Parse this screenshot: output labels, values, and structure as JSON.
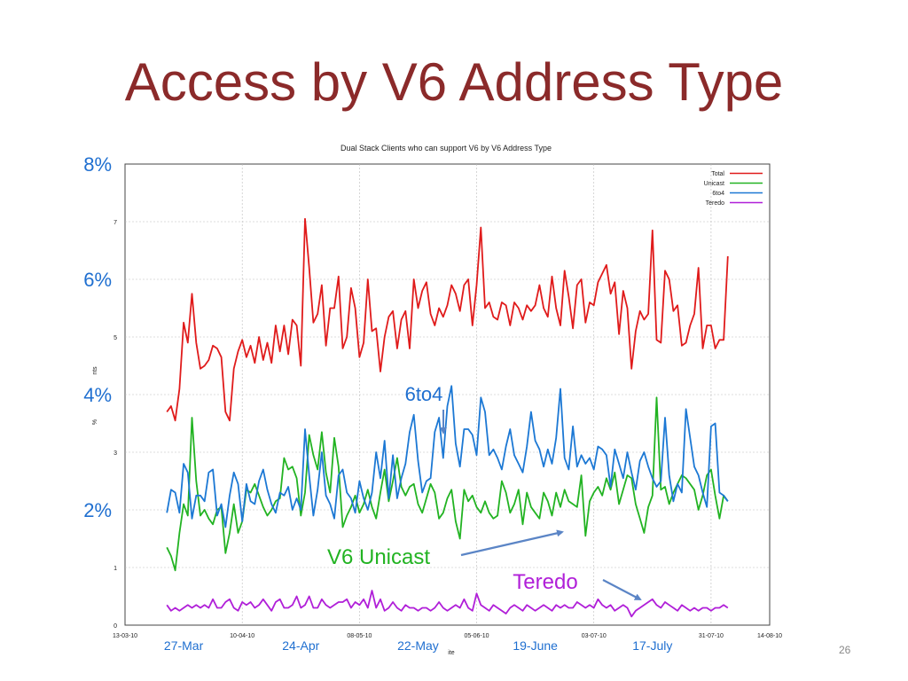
{
  "slide": {
    "title": "Access by V6 Address Type",
    "slide_number": "26"
  },
  "colors": {
    "title": "#8b2a2a",
    "annotation_blue": "#1f6fd0",
    "total": "#e01b1b",
    "unicast": "#22b322",
    "sixto4": "#1c78d4",
    "teredo": "#b01fd8",
    "arrow": "#5b85c6"
  },
  "chart_data": {
    "type": "line",
    "title": "Dual Stack Clients who can support V6 by V6 Address Type",
    "ylabel_fragments": [
      "%",
      "nts"
    ],
    "xlabel_fragment": "ite",
    "ylim": [
      0,
      8
    ],
    "yticks": [
      "0",
      "1",
      "2",
      "3",
      "4",
      "5",
      "6",
      "7",
      "8"
    ],
    "xticks": [
      "13-03-10",
      "10-04-10",
      "08-05-10",
      "05-06-10",
      "03-07-10",
      "31-07-10",
      "14-08-10"
    ],
    "x_start": "2010-03-13",
    "x_end": "2010-08-14",
    "grid": true,
    "legend_position": "top-right",
    "series": [
      {
        "name": "Total",
        "color_key": "total",
        "x": [
          "2010-03-23",
          "2010-03-24",
          "2010-03-25",
          "2010-03-26",
          "2010-03-27",
          "2010-03-28",
          "2010-03-29",
          "2010-03-30",
          "2010-03-31",
          "2010-04-01",
          "2010-04-02",
          "2010-04-03",
          "2010-04-04",
          "2010-04-05",
          "2010-04-06",
          "2010-04-07",
          "2010-04-08",
          "2010-04-09",
          "2010-04-10",
          "2010-04-11",
          "2010-04-12",
          "2010-04-13",
          "2010-04-14",
          "2010-04-15",
          "2010-04-16",
          "2010-04-17",
          "2010-04-18",
          "2010-04-19",
          "2010-04-20",
          "2010-04-21",
          "2010-04-22",
          "2010-04-23",
          "2010-04-24",
          "2010-04-25",
          "2010-04-26",
          "2010-04-27",
          "2010-04-28",
          "2010-04-29",
          "2010-04-30",
          "2010-05-01",
          "2010-05-02",
          "2010-05-03",
          "2010-05-04",
          "2010-05-05",
          "2010-05-06",
          "2010-05-07",
          "2010-05-08",
          "2010-05-09",
          "2010-05-10",
          "2010-05-11",
          "2010-05-12",
          "2010-05-13",
          "2010-05-14",
          "2010-05-15",
          "2010-05-16",
          "2010-05-17",
          "2010-05-18",
          "2010-05-19",
          "2010-05-20",
          "2010-05-21",
          "2010-05-22",
          "2010-05-23",
          "2010-05-24",
          "2010-05-25",
          "2010-05-26",
          "2010-05-27",
          "2010-05-28",
          "2010-05-29",
          "2010-05-30",
          "2010-05-31",
          "2010-06-01",
          "2010-06-02",
          "2010-06-03",
          "2010-06-04",
          "2010-06-05",
          "2010-06-06",
          "2010-06-07",
          "2010-06-08",
          "2010-06-09",
          "2010-06-10",
          "2010-06-11",
          "2010-06-12",
          "2010-06-13",
          "2010-06-14",
          "2010-06-15",
          "2010-06-16",
          "2010-06-17",
          "2010-06-18",
          "2010-06-19",
          "2010-06-20",
          "2010-06-21",
          "2010-06-22",
          "2010-06-23",
          "2010-06-24",
          "2010-06-25",
          "2010-06-26",
          "2010-06-27",
          "2010-06-28",
          "2010-06-29",
          "2010-06-30",
          "2010-07-01",
          "2010-07-02",
          "2010-07-03",
          "2010-07-04",
          "2010-07-05",
          "2010-07-06",
          "2010-07-07",
          "2010-07-08",
          "2010-07-09",
          "2010-07-10",
          "2010-07-11",
          "2010-07-12",
          "2010-07-13",
          "2010-07-14",
          "2010-07-15",
          "2010-07-16",
          "2010-07-17",
          "2010-07-18",
          "2010-07-19",
          "2010-07-20",
          "2010-07-21",
          "2010-07-22",
          "2010-07-23",
          "2010-07-24",
          "2010-07-25",
          "2010-07-26",
          "2010-07-27",
          "2010-07-28",
          "2010-07-29",
          "2010-07-30",
          "2010-07-31",
          "2010-08-01",
          "2010-08-02",
          "2010-08-03",
          "2010-08-04"
        ],
        "values": [
          3.7,
          3.8,
          3.55,
          4.1,
          5.25,
          4.9,
          5.75,
          4.9,
          4.45,
          4.5,
          4.6,
          4.85,
          4.8,
          4.65,
          3.7,
          3.55,
          4.45,
          4.75,
          4.95,
          4.65,
          4.85,
          4.55,
          5.0,
          4.6,
          4.9,
          4.55,
          5.2,
          4.75,
          5.2,
          4.7,
          5.3,
          5.2,
          4.5,
          7.05,
          6.2,
          5.25,
          5.4,
          5.9,
          4.85,
          5.5,
          5.5,
          6.05,
          4.8,
          5.0,
          5.85,
          5.5,
          4.65,
          4.9,
          6.0,
          5.1,
          5.15,
          4.4,
          5.0,
          5.35,
          5.45,
          4.8,
          5.3,
          5.45,
          4.8,
          6.0,
          5.5,
          5.8,
          5.95,
          5.4,
          5.2,
          5.5,
          5.35,
          5.55,
          5.9,
          5.75,
          5.45,
          5.9,
          6.0,
          5.2,
          5.9,
          6.9,
          5.5,
          5.6,
          5.35,
          5.3,
          5.6,
          5.55,
          5.2,
          5.6,
          5.5,
          5.3,
          5.55,
          5.45,
          5.55,
          5.9,
          5.5,
          5.35,
          6.05,
          5.5,
          5.2,
          6.15,
          5.7,
          5.15,
          5.9,
          6.0,
          5.25,
          5.6,
          5.55,
          5.95,
          6.1,
          6.25,
          5.75,
          5.95,
          5.05,
          5.8,
          5.5,
          4.45,
          5.1,
          5.45,
          5.3,
          5.4,
          6.85,
          4.95,
          4.9,
          6.15,
          6.0,
          5.45,
          5.55,
          4.85,
          4.9,
          5.2,
          5.4,
          6.2,
          4.8,
          5.2,
          5.2,
          4.8,
          4.95,
          4.95,
          6.4
        ],
        "y_values_note": null
      },
      {
        "name": "Unicast",
        "color_key": "unicast",
        "values": [
          1.35,
          1.2,
          0.95,
          1.6,
          2.1,
          1.9,
          3.6,
          2.5,
          1.9,
          2.0,
          1.85,
          1.75,
          2.0,
          2.05,
          1.25,
          1.6,
          2.1,
          1.6,
          1.8,
          2.35,
          2.3,
          2.45,
          2.25,
          2.05,
          1.9,
          2.0,
          2.15,
          2.2,
          2.9,
          2.7,
          2.75,
          2.55,
          1.9,
          2.3,
          3.3,
          2.95,
          2.7,
          3.35,
          2.65,
          2.3,
          3.25,
          2.75,
          1.7,
          1.9,
          2.05,
          2.25,
          1.95,
          2.1,
          2.35,
          2.05,
          1.85,
          2.3,
          2.7,
          2.15,
          2.5,
          2.9,
          2.4,
          2.25,
          2.4,
          2.45,
          2.1,
          1.95,
          2.2,
          2.45,
          2.3,
          1.85,
          1.95,
          2.2,
          2.35,
          1.8,
          1.5,
          2.35,
          2.15,
          2.25,
          2.05,
          1.95,
          2.15,
          1.95,
          1.85,
          1.9,
          2.5,
          2.3,
          1.95,
          2.1,
          2.35,
          1.75,
          2.3,
          2.05,
          1.95,
          1.85,
          2.3,
          2.15,
          1.9,
          2.3,
          2.05,
          2.35,
          2.15,
          2.1,
          2.05,
          2.6,
          1.55,
          2.15,
          2.3,
          2.4,
          2.25,
          2.55,
          2.35,
          2.65,
          2.1,
          2.35,
          2.6,
          2.55,
          2.1,
          1.85,
          1.6,
          2.05,
          2.25,
          3.95,
          2.35,
          2.4,
          2.1,
          2.3,
          2.45,
          2.6,
          2.55,
          2.45,
          2.35,
          2.0,
          2.25,
          2.6,
          2.7,
          2.25,
          1.85,
          2.25,
          2.15
        ],
        "x_same_as": "Total"
      },
      {
        "name": "6to4",
        "color_key": "sixto4",
        "values": [
          1.95,
          2.35,
          2.3,
          1.95,
          2.8,
          2.65,
          1.85,
          2.25,
          2.25,
          2.15,
          2.65,
          2.7,
          1.9,
          2.1,
          1.7,
          2.25,
          2.65,
          2.45,
          1.8,
          2.45,
          2.15,
          2.1,
          2.5,
          2.7,
          2.35,
          2.1,
          1.95,
          2.3,
          2.25,
          2.4,
          2.0,
          2.2,
          2.0,
          3.4,
          2.6,
          1.9,
          2.35,
          3.0,
          2.25,
          2.1,
          1.85,
          2.6,
          2.7,
          2.3,
          2.2,
          1.95,
          2.5,
          2.2,
          2.0,
          2.3,
          3.0,
          2.55,
          3.2,
          2.2,
          2.95,
          2.2,
          2.55,
          2.8,
          3.35,
          3.65,
          2.85,
          2.3,
          2.5,
          2.55,
          3.35,
          3.6,
          2.9,
          3.8,
          4.15,
          3.15,
          2.75,
          3.4,
          3.4,
          3.3,
          2.95,
          3.95,
          3.7,
          2.95,
          3.05,
          2.9,
          2.7,
          3.1,
          3.4,
          2.95,
          2.8,
          2.65,
          3.1,
          3.7,
          3.2,
          3.05,
          2.75,
          3.05,
          2.8,
          3.25,
          4.1,
          2.9,
          2.7,
          3.45,
          2.75,
          2.95,
          2.8,
          2.9,
          2.7,
          3.1,
          3.05,
          2.95,
          2.4,
          3.05,
          2.8,
          2.55,
          3.0,
          2.65,
          2.35,
          2.85,
          3.0,
          2.75,
          2.55,
          2.4,
          2.5,
          3.6,
          2.6,
          2.15,
          2.45,
          2.3,
          3.75,
          3.25,
          2.75,
          2.6,
          2.3,
          2.05,
          3.45,
          3.5,
          2.3,
          2.25,
          2.15,
          2.85,
          3.8
        ],
        "x_same_as": "Total"
      },
      {
        "name": "Teredo",
        "color_key": "teredo",
        "values": [
          0.35,
          0.25,
          0.3,
          0.25,
          0.3,
          0.35,
          0.3,
          0.35,
          0.3,
          0.35,
          0.3,
          0.45,
          0.3,
          0.3,
          0.4,
          0.45,
          0.3,
          0.25,
          0.4,
          0.35,
          0.4,
          0.3,
          0.35,
          0.45,
          0.35,
          0.25,
          0.4,
          0.45,
          0.3,
          0.3,
          0.35,
          0.5,
          0.3,
          0.35,
          0.5,
          0.3,
          0.3,
          0.45,
          0.35,
          0.3,
          0.35,
          0.4,
          0.4,
          0.45,
          0.3,
          0.4,
          0.35,
          0.45,
          0.3,
          0.6,
          0.3,
          0.45,
          0.25,
          0.3,
          0.4,
          0.3,
          0.25,
          0.35,
          0.3,
          0.3,
          0.25,
          0.3,
          0.3,
          0.25,
          0.3,
          0.4,
          0.3,
          0.25,
          0.3,
          0.35,
          0.3,
          0.45,
          0.3,
          0.25,
          0.55,
          0.35,
          0.3,
          0.25,
          0.35,
          0.3,
          0.25,
          0.2,
          0.3,
          0.35,
          0.3,
          0.25,
          0.35,
          0.3,
          0.25,
          0.3,
          0.35,
          0.3,
          0.25,
          0.35,
          0.3,
          0.35,
          0.3,
          0.3,
          0.4,
          0.35,
          0.3,
          0.35,
          0.3,
          0.45,
          0.35,
          0.3,
          0.35,
          0.25,
          0.3,
          0.35,
          0.3,
          0.15,
          0.25,
          0.3,
          0.35,
          0.4,
          0.45,
          0.35,
          0.3,
          0.4,
          0.35,
          0.3,
          0.25,
          0.35,
          0.3,
          0.25,
          0.3,
          0.25,
          0.3,
          0.3,
          0.25,
          0.3,
          0.3,
          0.35,
          0.3,
          0.3,
          0.25,
          0.45
        ],
        "x_same_as": "Total"
      }
    ]
  },
  "annotations": {
    "left_axis_labels": [
      "8%",
      "6%",
      "4%",
      "2%"
    ],
    "date_labels": [
      "27-Mar",
      "24-Apr",
      "22-May",
      "19-June",
      "17-July"
    ],
    "callouts": {
      "sixto4": "6to4",
      "unicast": "V6 Unicast",
      "teredo": "Teredo"
    }
  }
}
